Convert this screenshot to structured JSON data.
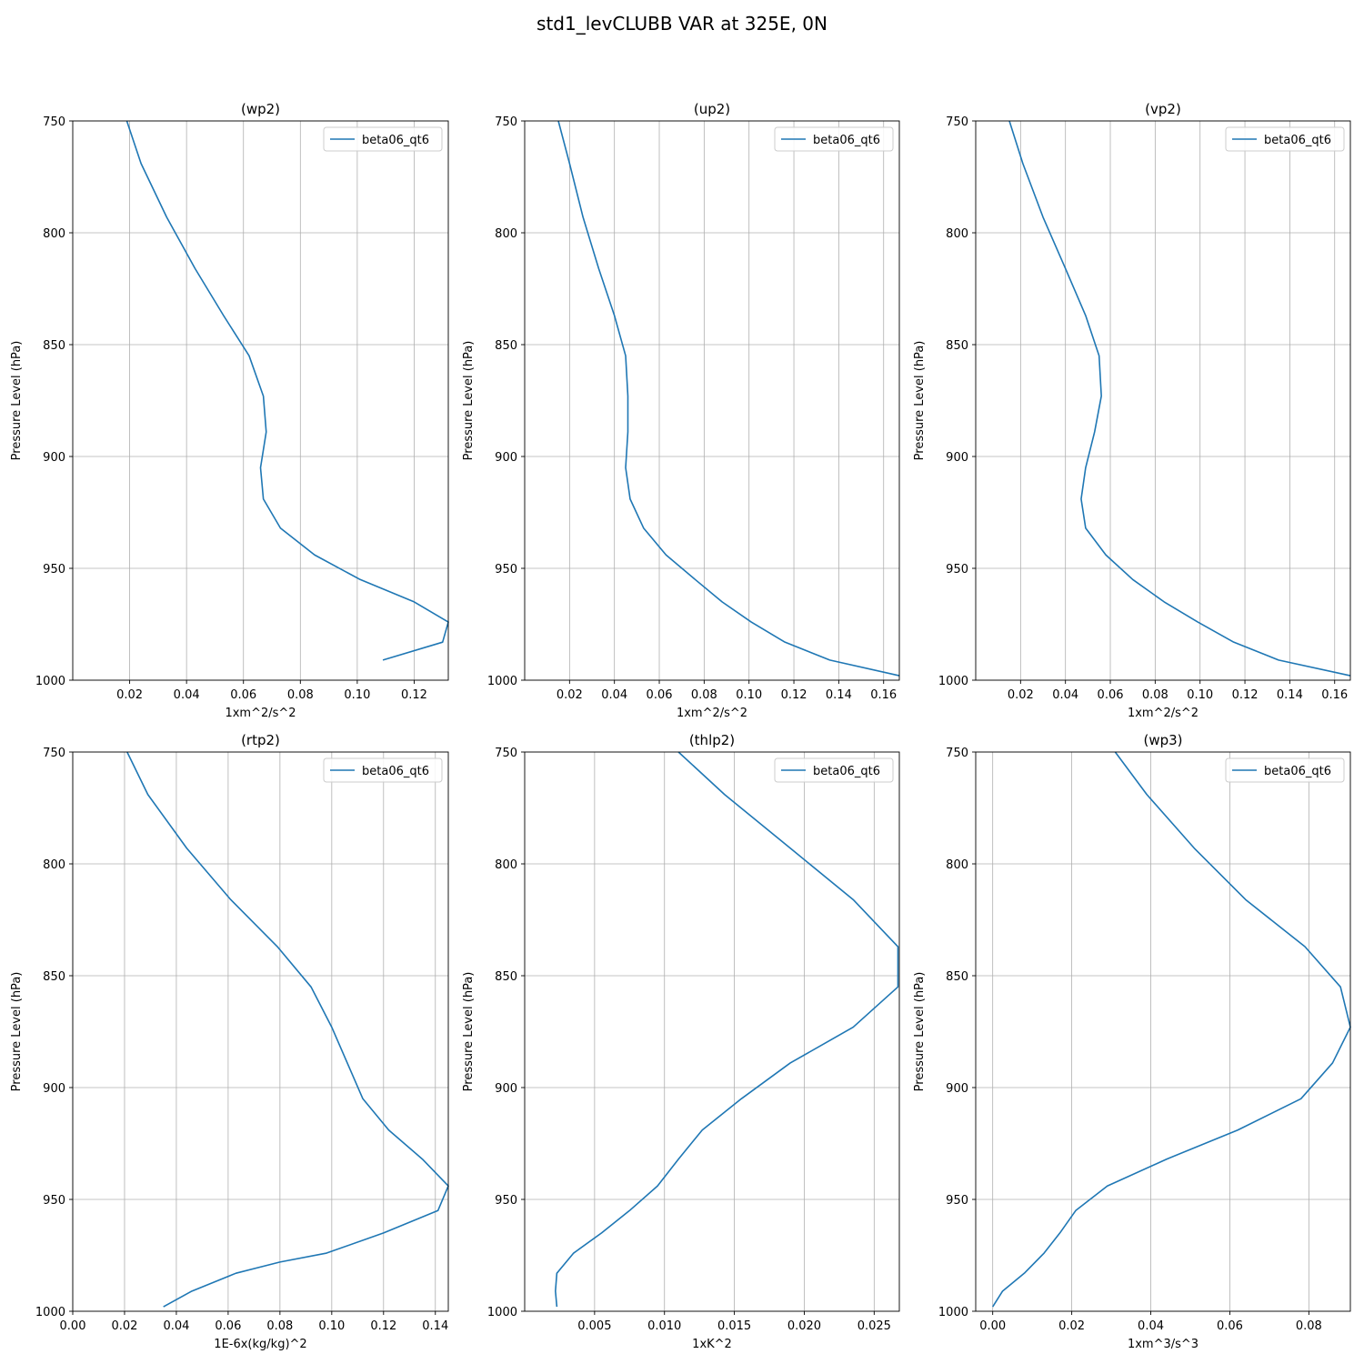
{
  "figure": {
    "suptitle": "std1_levCLUBB VAR at 325E, 0N"
  },
  "chart_data": [
    {
      "type": "line",
      "title": "(wp2)",
      "xlabel": "1xm^2/s^2",
      "ylabel": "Pressure Level (hPa)",
      "xlim": [
        0.0,
        0.132
      ],
      "ylim": [
        1000,
        750
      ],
      "xticks": [
        "0.02",
        "0.04",
        "0.06",
        "0.08",
        "0.10",
        "0.12"
      ],
      "yticks": [
        "750",
        "800",
        "850",
        "900",
        "950",
        "1000"
      ],
      "grid": true,
      "legend_position": "top-right",
      "series": [
        {
          "name": "beta06_qt6",
          "color": "#1f77b4",
          "x": [
            0.019,
            0.024,
            0.033,
            0.043,
            0.053,
            0.062,
            0.067,
            0.068,
            0.066,
            0.067,
            0.073,
            0.085,
            0.101,
            0.12,
            0.132,
            0.13,
            0.109
          ],
          "y": [
            750,
            769,
            793,
            816,
            837,
            855,
            873,
            889,
            905,
            919,
            932,
            944,
            955,
            965,
            974,
            983,
            991
          ]
        }
      ]
    },
    {
      "type": "line",
      "title": "(up2)",
      "xlabel": "1xm^2/s^2",
      "ylabel": "Pressure Level (hPa)",
      "xlim": [
        0.0,
        0.167
      ],
      "ylim": [
        1000,
        750
      ],
      "xticks": [
        "0.02",
        "0.04",
        "0.06",
        "0.08",
        "0.10",
        "0.12",
        "0.14",
        "0.16"
      ],
      "yticks": [
        "750",
        "800",
        "850",
        "900",
        "950",
        "1000"
      ],
      "grid": true,
      "legend_position": "top-right",
      "series": [
        {
          "name": "beta06_qt6",
          "color": "#1f77b4",
          "x": [
            0.015,
            0.02,
            0.026,
            0.033,
            0.04,
            0.045,
            0.046,
            0.046,
            0.045,
            0.047,
            0.053,
            0.063,
            0.076,
            0.088,
            0.101,
            0.116,
            0.136,
            0.167
          ],
          "y": [
            750,
            769,
            793,
            816,
            837,
            855,
            873,
            889,
            905,
            919,
            932,
            944,
            955,
            965,
            974,
            983,
            991,
            998
          ]
        }
      ]
    },
    {
      "type": "line",
      "title": "(vp2)",
      "xlabel": "1xm^2/s^2",
      "ylabel": "Pressure Level (hPa)",
      "xlim": [
        0.0,
        0.167
      ],
      "ylim": [
        1000,
        750
      ],
      "xticks": [
        "0.02",
        "0.04",
        "0.06",
        "0.08",
        "0.10",
        "0.12",
        "0.14",
        "0.16"
      ],
      "yticks": [
        "750",
        "800",
        "850",
        "900",
        "950",
        "1000"
      ],
      "grid": true,
      "legend_position": "top-right",
      "series": [
        {
          "name": "beta06_qt6",
          "color": "#1f77b4",
          "x": [
            0.015,
            0.021,
            0.03,
            0.04,
            0.049,
            0.055,
            0.056,
            0.053,
            0.049,
            0.047,
            0.049,
            0.058,
            0.07,
            0.084,
            0.099,
            0.115,
            0.135,
            0.167
          ],
          "y": [
            750,
            769,
            793,
            816,
            837,
            855,
            873,
            889,
            905,
            919,
            932,
            944,
            955,
            965,
            974,
            983,
            991,
            998
          ]
        }
      ]
    },
    {
      "type": "line",
      "title": "(rtp2)",
      "xlabel": "1E-6x(kg/kg)^2",
      "ylabel": "Pressure Level (hPa)",
      "xlim": [
        0.0,
        0.145
      ],
      "ylim": [
        1000,
        750
      ],
      "xticks": [
        "0.00",
        "0.02",
        "0.04",
        "0.06",
        "0.08",
        "0.10",
        "0.12",
        "0.14"
      ],
      "yticks": [
        "750",
        "800",
        "850",
        "900",
        "950",
        "1000"
      ],
      "grid": true,
      "legend_position": "top-right",
      "series": [
        {
          "name": "beta06_qt6",
          "color": "#1f77b4",
          "x": [
            0.021,
            0.029,
            0.044,
            0.061,
            0.079,
            0.092,
            0.1,
            0.106,
            0.112,
            0.122,
            0.135,
            0.145,
            0.141,
            0.12,
            0.098,
            0.08,
            0.063,
            0.046,
            0.035
          ],
          "y": [
            750,
            769,
            793,
            816,
            837,
            855,
            873,
            889,
            905,
            919,
            932,
            944,
            955,
            965,
            974,
            978,
            983,
            991,
            998
          ]
        }
      ]
    },
    {
      "type": "line",
      "title": "(thlp2)",
      "xlabel": "1xK^2",
      "ylabel": "Pressure Level (hPa)",
      "xlim": [
        0.0,
        0.0268
      ],
      "ylim": [
        1000,
        750
      ],
      "xticks": [
        "0.005",
        "0.010",
        "0.015",
        "0.020",
        "0.025"
      ],
      "yticks": [
        "750",
        "800",
        "850",
        "900",
        "950",
        "1000"
      ],
      "grid": true,
      "legend_position": "top-right",
      "series": [
        {
          "name": "beta06_qt6",
          "color": "#1f77b4",
          "x": [
            0.011,
            0.0143,
            0.019,
            0.0235,
            0.0267,
            0.0267,
            0.0235,
            0.019,
            0.0155,
            0.0127,
            0.011,
            0.0095,
            0.0075,
            0.0055,
            0.0035,
            0.0023,
            0.0022,
            0.0023
          ],
          "y": [
            750,
            769,
            793,
            816,
            837,
            855,
            873,
            889,
            905,
            919,
            932,
            944,
            955,
            965,
            974,
            983,
            991,
            998
          ]
        }
      ]
    },
    {
      "type": "line",
      "title": "(wp3)",
      "xlabel": "1xm^3/s^3",
      "ylabel": "Pressure Level (hPa)",
      "xlim": [
        -0.0043,
        0.0905
      ],
      "ylim": [
        1000,
        750
      ],
      "xticks": [
        "0.00",
        "0.02",
        "0.04",
        "0.06",
        "0.08"
      ],
      "yticks": [
        "750",
        "800",
        "850",
        "900",
        "950",
        "1000"
      ],
      "grid": true,
      "legend_position": "top-right",
      "series": [
        {
          "name": "beta06_qt6",
          "color": "#1f77b4",
          "x": [
            0.031,
            0.039,
            0.051,
            0.064,
            0.079,
            0.088,
            0.0905,
            0.086,
            0.078,
            0.062,
            0.044,
            0.029,
            0.021,
            0.017,
            0.013,
            0.008,
            0.0025,
            0.0
          ],
          "y": [
            750,
            769,
            793,
            816,
            837,
            855,
            873,
            889,
            905,
            919,
            932,
            944,
            955,
            965,
            974,
            983,
            991,
            998
          ]
        }
      ]
    }
  ]
}
